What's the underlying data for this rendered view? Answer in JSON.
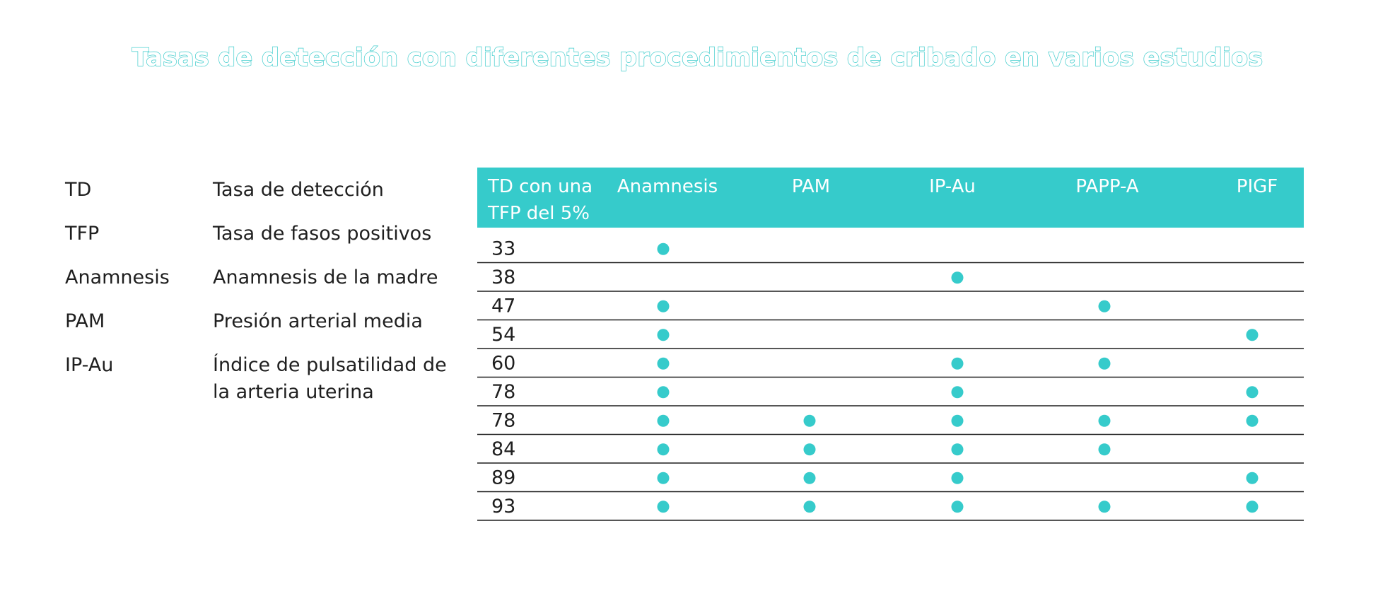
{
  "title": "Tasas de detección con diferentes procedimientos de cribado en varios estudios",
  "glossary": [
    {
      "abbr": "TD",
      "definition": "Tasa de detección"
    },
    {
      "abbr": "TFP",
      "definition": "Tasa de fasos positivos"
    },
    {
      "abbr": "Anamnesis",
      "definition": "Anamnesis de la madre"
    },
    {
      "abbr": "PAM",
      "definition": "Presión arterial media"
    },
    {
      "abbr": "IP-Au",
      "definition": "Índice de pulsatilidad de la arteria uterina"
    }
  ],
  "colors": {
    "accent": "#36cbcb",
    "title_outline": "#3fcccc",
    "dot": "#36cbcb",
    "rule": "#1f1f1f",
    "header_text": "#ffffff"
  },
  "chart_data": {
    "type": "table",
    "title": "Tasas de detección con diferentes procedimientos de cribado en varios estudios",
    "row_header": [
      "TD con una",
      "TFP del 5%"
    ],
    "columns": [
      "Anamnesis",
      "PAM",
      "IP-Au",
      "PAPP-A",
      "PIGF"
    ],
    "rows": [
      {
        "td": "33",
        "uses": [
          true,
          false,
          false,
          false,
          false
        ]
      },
      {
        "td": "38",
        "uses": [
          false,
          false,
          true,
          false,
          false
        ]
      },
      {
        "td": "47",
        "uses": [
          true,
          false,
          false,
          true,
          false
        ]
      },
      {
        "td": "54",
        "uses": [
          true,
          false,
          false,
          false,
          true
        ]
      },
      {
        "td": "60",
        "uses": [
          true,
          false,
          true,
          true,
          false
        ]
      },
      {
        "td": "78",
        "uses": [
          true,
          false,
          true,
          false,
          true
        ]
      },
      {
        "td": "78",
        "uses": [
          true,
          true,
          true,
          true,
          true
        ]
      },
      {
        "td": "84",
        "uses": [
          true,
          true,
          true,
          true,
          false
        ]
      },
      {
        "td": "89",
        "uses": [
          true,
          true,
          true,
          false,
          true
        ]
      },
      {
        "td": "93",
        "uses": [
          true,
          true,
          true,
          true,
          true
        ]
      }
    ]
  }
}
